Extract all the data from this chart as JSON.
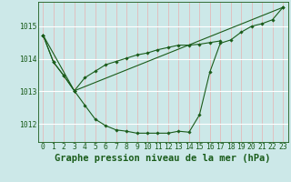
{
  "xlabel": "Graphe pression niveau de la mer (hPa)",
  "x_hours": [
    0,
    1,
    2,
    3,
    4,
    5,
    6,
    7,
    8,
    9,
    10,
    11,
    12,
    13,
    14,
    15,
    16,
    17,
    18,
    19,
    20,
    21,
    22,
    23
  ],
  "line1": [
    1014.73,
    1013.9,
    1013.48,
    1013.02,
    1012.58,
    1012.15,
    1011.95,
    1011.82,
    1011.78,
    1011.72,
    1011.72,
    1011.72,
    1011.72,
    1011.78,
    1011.75,
    1012.28,
    1013.6,
    1014.48,
    1014.58,
    1014.82,
    1015.0,
    1015.08,
    1015.2,
    1015.58
  ],
  "line2": [
    1014.73,
    1013.9,
    1013.48,
    1013.02,
    1013.42,
    1013.62,
    1013.82,
    1013.92,
    1014.02,
    1014.12,
    1014.18,
    1014.28,
    1014.35,
    1014.42,
    1014.42,
    1014.45,
    1014.5,
    1014.55,
    null,
    null,
    null,
    null,
    null,
    null
  ],
  "line3": [
    1014.73,
    null,
    null,
    1013.02,
    null,
    null,
    null,
    null,
    null,
    null,
    null,
    null,
    null,
    null,
    null,
    null,
    null,
    null,
    null,
    null,
    null,
    null,
    null,
    1015.58
  ],
  "bg_color": "#cce8e8",
  "line_color": "#1a5c1a",
  "grid_color_v": "#e8b0b0",
  "grid_color_h": "#ffffff",
  "ylim": [
    1011.45,
    1015.75
  ],
  "yticks": [
    1012,
    1013,
    1014,
    1015
  ],
  "marker": "D",
  "marker_size": 1.8,
  "line_width": 0.8,
  "xlabel_fontsize": 7.5,
  "tick_fontsize": 5.8
}
